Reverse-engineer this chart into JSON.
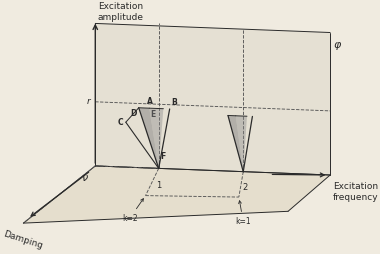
{
  "bg_color": "#f0ebe0",
  "line_color": "#2a2a2a",
  "dashed_color": "#555555",
  "shade_color": "#888888",
  "fig_width": 3.8,
  "fig_height": 2.54,
  "dpi": 100,
  "labels": {
    "excitation_amplitude": "Excitation\namplitude",
    "excitation_frequency": "Excitation\nfrequency",
    "damping": "Damping",
    "phi": "φ",
    "nu": "ν",
    "r": "r",
    "A": "A",
    "B": "B",
    "C": "C",
    "D": "D",
    "E": "E",
    "F": "F",
    "k1": "k=1",
    "k2": "k=2",
    "num1": "1",
    "num2": "2"
  }
}
